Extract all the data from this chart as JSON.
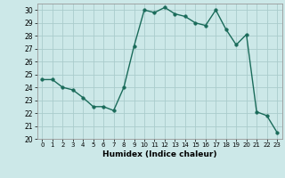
{
  "x": [
    0,
    1,
    2,
    3,
    4,
    5,
    6,
    7,
    8,
    9,
    10,
    11,
    12,
    13,
    14,
    15,
    16,
    17,
    18,
    19,
    20,
    21,
    22,
    23
  ],
  "y": [
    24.6,
    24.6,
    24.0,
    23.8,
    23.2,
    22.5,
    22.5,
    22.2,
    24.0,
    27.2,
    30.0,
    29.8,
    30.2,
    29.7,
    29.5,
    29.0,
    28.8,
    30.0,
    28.5,
    27.3,
    28.1,
    22.1,
    21.8,
    20.5
  ],
  "line_color": "#1a6b5a",
  "marker_color": "#1a6b5a",
  "bg_color": "#cce8e8",
  "grid_color": "#aacccc",
  "xlabel": "Humidex (Indice chaleur)",
  "ylim": [
    20,
    30.5
  ],
  "xlim": [
    -0.5,
    23.5
  ],
  "yticks": [
    20,
    21,
    22,
    23,
    24,
    25,
    26,
    27,
    28,
    29,
    30
  ],
  "xticks": [
    0,
    1,
    2,
    3,
    4,
    5,
    6,
    7,
    8,
    9,
    10,
    11,
    12,
    13,
    14,
    15,
    16,
    17,
    18,
    19,
    20,
    21,
    22,
    23
  ],
  "linewidth": 1.0,
  "markersize": 2.5
}
